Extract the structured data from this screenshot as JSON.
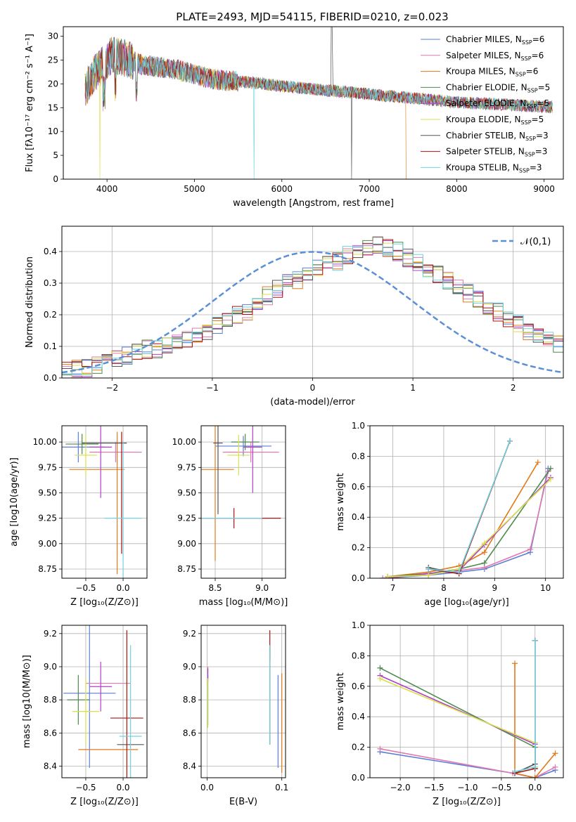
{
  "figure_title": "PLATE=2493, MJD=54115, FIBERID=0210, z=0.023",
  "colors": {
    "Chabrier MILES": "#5b7fd6",
    "Salpeter MILES": "#e07ab0",
    "Kroupa MILES": "#e07a1a",
    "Chabrier ELODIE": "#4f8a4f",
    "Salpeter ELODIE": "#b040c8",
    "Kroupa ELODIE": "#d8e04a",
    "Chabrier STELIB": "#555555",
    "Salpeter STELIB": "#b01010",
    "Kroupa STELIB": "#6fd3e0",
    "normal_curve": "#5b8fd6"
  },
  "chart_data": [
    {
      "type": "line",
      "title": "PLATE=2493, MJD=54115, FIBERID=0210, z=0.023",
      "xlabel": "wavelength [Angstrom, rest frame]",
      "ylabel": "Flux [f_λ 10^-17 erg cm^-2 s^-1 A^-1]",
      "xlim": [
        3500,
        9220
      ],
      "ylim": [
        0,
        32
      ],
      "xticks": [
        4000,
        5000,
        6000,
        7000,
        8000,
        9000
      ],
      "yticks": [
        0,
        5,
        10,
        15,
        20,
        25,
        30
      ],
      "legend_position": "top-right",
      "series": [
        {
          "name": "Chabrier MILES, N_SSP=6"
        },
        {
          "name": "Salpeter MILES, N_SSP=6"
        },
        {
          "name": "Kroupa MILES, N_SSP=6"
        },
        {
          "name": "Chabrier ELODIE, N_SSP=5"
        },
        {
          "name": "Salpeter ELODIE, N_SSP=5"
        },
        {
          "name": "Kroupa ELODIE, N_SSP=5"
        },
        {
          "name": "Chabrier STELIB, N_SSP=3"
        },
        {
          "name": "Salpeter STELIB, N_SSP=3"
        },
        {
          "name": "Kroupa STELIB, N_SSP=3"
        }
      ],
      "continuum": [
        [
          3750,
          19
        ],
        [
          3850,
          22
        ],
        [
          3950,
          24
        ],
        [
          4050,
          26
        ],
        [
          4200,
          25.5
        ],
        [
          4400,
          24
        ],
        [
          4600,
          23.5
        ],
        [
          4800,
          23
        ],
        [
          5000,
          22
        ],
        [
          5200,
          21
        ],
        [
          5500,
          20.5
        ],
        [
          5800,
          20
        ],
        [
          6000,
          19.5
        ],
        [
          6300,
          19
        ],
        [
          6600,
          18.5
        ],
        [
          6900,
          18
        ],
        [
          7200,
          17.5
        ],
        [
          7500,
          17
        ],
        [
          7800,
          16.5
        ],
        [
          8100,
          16
        ],
        [
          8400,
          15.8
        ],
        [
          8700,
          15.5
        ],
        [
          9000,
          15.2
        ],
        [
          9100,
          15.1
        ]
      ]
    },
    {
      "type": "bar",
      "xlabel": "(data-model)/error",
      "ylabel": "Normed distribution",
      "xlim": [
        -2.5,
        2.5
      ],
      "ylim": [
        0,
        0.48
      ],
      "xticks": [
        -2,
        -1,
        0,
        1,
        2
      ],
      "yticks": [
        0.0,
        0.1,
        0.2,
        0.3,
        0.4
      ],
      "legend_position": "top-right",
      "legend": "𝒩(0,1)",
      "bin_width": 0.1,
      "bins_from": -2.5,
      "histogram": [
        0.02,
        0.03,
        0.03,
        0.04,
        0.05,
        0.06,
        0.07,
        0.08,
        0.09,
        0.09,
        0.1,
        0.11,
        0.12,
        0.13,
        0.15,
        0.17,
        0.18,
        0.2,
        0.21,
        0.24,
        0.26,
        0.28,
        0.3,
        0.31,
        0.33,
        0.35,
        0.36,
        0.37,
        0.39,
        0.4,
        0.41,
        0.42,
        0.41,
        0.4,
        0.38,
        0.37,
        0.35,
        0.33,
        0.31,
        0.29,
        0.27,
        0.25,
        0.23,
        0.21,
        0.19,
        0.17,
        0.15,
        0.14,
        0.12,
        0.11
      ],
      "normal_curve": {
        "mean": 0,
        "sigma": 1
      }
    },
    {
      "type": "scatter",
      "xlabel": "Z [log10(Z/Z⊙)]",
      "ylabel": "age [log10(age/yr)]",
      "xlim": [
        -0.82,
        0.32
      ],
      "ylim": [
        8.66,
        10.16
      ],
      "xticks": [
        -0.5,
        0.0
      ],
      "yticks": [
        8.75,
        9.0,
        9.25,
        9.5,
        9.75,
        10.0
      ],
      "points": [
        {
          "series": "Chabrier MILES",
          "x": -0.6,
          "y": 9.95,
          "xerr": 0.35,
          "yerr": 0.15
        },
        {
          "series": "Salpeter MILES",
          "x": -0.1,
          "y": 9.9,
          "xerr": 0.35,
          "yerr": 0.1
        },
        {
          "series": "Kroupa MILES",
          "x": -0.35,
          "y": 9.73,
          "xerr": 0.37,
          "yerr": 0.0
        },
        {
          "series": "Kroupa MILES v",
          "x": -0.08,
          "y": 9.4,
          "xerr": 0.0,
          "yerr": 0.7
        },
        {
          "series": "Chabrier ELODIE",
          "x": -0.55,
          "y": 9.98,
          "xerr": 0.22,
          "yerr": 0.1
        },
        {
          "series": "Salpeter ELODIE",
          "x": -0.3,
          "y": 9.95,
          "xerr": 0.15,
          "yerr": 0.5
        },
        {
          "series": "Kroupa ELODIE",
          "x": -0.5,
          "y": 9.87,
          "xerr": 0.15,
          "yerr": 0.2
        },
        {
          "series": "Chabrier STELIB",
          "x": -0.25,
          "y": 9.99,
          "xerr": 0.3,
          "yerr": 0.0
        },
        {
          "series": "Salpeter STELIB",
          "x": -0.02,
          "y": 9.5,
          "xerr": 0.0,
          "yerr": 0.6
        },
        {
          "series": "Kroupa STELIB",
          "x": 0.0,
          "y": 9.25,
          "xerr": 0.25,
          "yerr": 0.75
        }
      ]
    },
    {
      "type": "scatter",
      "xlabel": "mass [log10(M/M⊙)]",
      "ylabel": "",
      "xlim": [
        8.35,
        9.25
      ],
      "ylim": [
        8.66,
        10.16
      ],
      "xticks": [
        8.5,
        9.0
      ],
      "yticks": [
        8.75,
        9.0,
        9.25,
        9.5,
        9.75,
        10.0
      ],
      "points": [
        {
          "series": "Chabrier MILES",
          "x": 8.8,
          "y": 9.96,
          "xerr": 0.3,
          "yerr": 0.1
        },
        {
          "series": "Salpeter MILES",
          "x": 8.88,
          "y": 9.9,
          "xerr": 0.3,
          "yerr": 0.1
        },
        {
          "series": "Kroupa MILES",
          "x": 8.5,
          "y": 9.73,
          "xerr": 0.2,
          "yerr": 0.9
        },
        {
          "series": "Chabrier ELODIE",
          "x": 8.82,
          "y": 10.0,
          "xerr": 0.15,
          "yerr": 0.08
        },
        {
          "series": "Salpeter ELODIE",
          "x": 8.9,
          "y": 9.95,
          "xerr": 0.1,
          "yerr": 0.45
        },
        {
          "series": "Kroupa ELODIE",
          "x": 8.75,
          "y": 9.87,
          "xerr": 0.12,
          "yerr": 0.2
        },
        {
          "series": "Chabrier STELIB",
          "x": 8.53,
          "y": 9.99,
          "xerr": 0.05,
          "yerr": 0.7
        },
        {
          "series": "Salpeter STELIB",
          "x": 8.7,
          "y": 9.25,
          "xerr": 0.5,
          "yerr": 0.1
        },
        {
          "series": "Kroupa STELIB",
          "x": 8.6,
          "y": 9.25,
          "xerr": 0.4,
          "yerr": 0.0
        }
      ]
    },
    {
      "type": "line",
      "xlabel": "age [log10(age/yr)]",
      "ylabel": "mass weight",
      "xlim": [
        6.55,
        10.35
      ],
      "ylim": [
        0,
        1.0
      ],
      "xticks": [
        7,
        8,
        9,
        10
      ],
      "yticks": [
        0.0,
        0.2,
        0.4,
        0.6,
        0.8,
        1.0
      ],
      "series": [
        {
          "key": "Chabrier MILES",
          "x": [
            6.8,
            7.7,
            8.3,
            8.8,
            9.7,
            10.05
          ],
          "y": [
            0.0,
            0.02,
            0.04,
            0.06,
            0.17,
            0.72
          ]
        },
        {
          "key": "Salpeter MILES",
          "x": [
            6.8,
            7.7,
            8.3,
            8.8,
            9.7,
            10.05
          ],
          "y": [
            0.0,
            0.03,
            0.05,
            0.07,
            0.19,
            0.7
          ]
        },
        {
          "key": "Kroupa MILES",
          "x": [
            6.9,
            7.7,
            8.3,
            8.8,
            9.85
          ],
          "y": [
            0.01,
            0.04,
            0.08,
            0.17,
            0.76
          ]
        },
        {
          "key": "Chabrier ELODIE",
          "x": [
            6.9,
            7.7,
            8.3,
            8.8,
            10.1
          ],
          "y": [
            0.01,
            0.03,
            0.06,
            0.1,
            0.72
          ]
        },
        {
          "key": "Salpeter ELODIE",
          "x": [
            6.9,
            7.7,
            8.3,
            8.8,
            10.1
          ],
          "y": [
            0.0,
            0.03,
            0.05,
            0.22,
            0.66
          ]
        },
        {
          "key": "Kroupa ELODIE",
          "x": [
            6.9,
            7.7,
            8.3,
            8.8,
            10.1
          ],
          "y": [
            0.01,
            0.02,
            0.06,
            0.23,
            0.65
          ]
        },
        {
          "key": "Chabrier STELIB",
          "x": [
            7.7,
            8.3,
            9.3
          ],
          "y": [
            0.07,
            0.03,
            0.9
          ]
        },
        {
          "key": "Salpeter STELIB",
          "x": [
            7.7,
            8.3,
            9.3
          ],
          "y": [
            0.06,
            0.03,
            0.9
          ]
        },
        {
          "key": "Kroupa STELIB",
          "x": [
            7.7,
            8.3,
            9.3
          ],
          "y": [
            0.06,
            0.04,
            0.9
          ]
        }
      ]
    },
    {
      "type": "scatter",
      "xlabel": "Z [log10(Z/Z⊙)]",
      "ylabel": "mass [log10(M/M⊙)]",
      "xlim": [
        -0.82,
        0.32
      ],
      "ylim": [
        8.33,
        9.25
      ],
      "xticks": [
        -0.5,
        0.0
      ],
      "yticks": [
        8.4,
        8.6,
        8.8,
        9.0,
        9.2
      ],
      "points": [
        {
          "series": "Chabrier MILES",
          "x": -0.45,
          "y": 8.84,
          "xerr": 0.35,
          "yerr": 0.45
        },
        {
          "series": "Salpeter MILES",
          "x": -0.2,
          "y": 8.9,
          "xerr": 0.3,
          "yerr": 0.0
        },
        {
          "series": "Kroupa MILES",
          "x": -0.2,
          "y": 8.5,
          "xerr": 0.4,
          "yerr": 0.0
        },
        {
          "series": "Chabrier ELODIE",
          "x": -0.6,
          "y": 8.8,
          "xerr": 0.15,
          "yerr": 0.15
        },
        {
          "series": "Salpeter ELODIE",
          "x": -0.3,
          "y": 8.88,
          "xerr": 0.15,
          "yerr": 0.15
        },
        {
          "series": "Kroupa ELODIE",
          "x": -0.5,
          "y": 8.73,
          "xerr": 0.18,
          "yerr": 0.2
        },
        {
          "series": "Chabrier STELIB",
          "x": 0.1,
          "y": 8.53,
          "xerr": 0.18,
          "yerr": 0.0
        },
        {
          "series": "Salpeter STELIB",
          "x": 0.05,
          "y": 8.69,
          "xerr": 0.22,
          "yerr": 0.53
        },
        {
          "series": "Kroupa STELIB",
          "x": 0.1,
          "y": 8.58,
          "xerr": 0.15,
          "yerr": 0.55
        }
      ]
    },
    {
      "type": "scatter",
      "xlabel": "E(B-V)",
      "ylabel": "",
      "xlim": [
        -0.008,
        0.105
      ],
      "ylim": [
        8.33,
        9.25
      ],
      "xticks": [
        0.0,
        0.1
      ],
      "yticks": [
        8.4,
        8.6,
        8.8,
        9.0,
        9.2
      ],
      "points": [
        {
          "series": "Chabrier MILES",
          "x": 0.095,
          "y": 8.67,
          "xerr": 0.0,
          "yerr": 0.28
        },
        {
          "series": "Salpeter MILES",
          "x": 0.001,
          "y": 8.98,
          "xerr": 0.0,
          "yerr": 0.02
        },
        {
          "series": "Kroupa MILES",
          "x": 0.1,
          "y": 8.66,
          "xerr": 0.0,
          "yerr": 0.3
        },
        {
          "series": "Chabrier ELODIE",
          "x": 0.001,
          "y": 8.8,
          "xerr": 0.0,
          "yerr": 0.15
        },
        {
          "series": "Salpeter ELODIE",
          "x": 0.001,
          "y": 8.95,
          "xerr": 0.0,
          "yerr": 0.04
        },
        {
          "series": "Kroupa ELODIE",
          "x": 0.001,
          "y": 8.78,
          "xerr": 0.0,
          "yerr": 0.15
        },
        {
          "series": "Chabrier STELIB",
          "x": 0.084,
          "y": 8.83,
          "xerr": 0.0,
          "yerr": 0.3
        },
        {
          "series": "Salpeter STELIB",
          "x": 0.084,
          "y": 9.13,
          "xerr": 0.0,
          "yerr": 0.09
        },
        {
          "series": "Kroupa STELIB",
          "x": 0.084,
          "y": 8.83,
          "xerr": 0.0,
          "yerr": 0.3
        }
      ]
    },
    {
      "type": "line",
      "xlabel": "Z [log10(Z/Z⊙)]",
      "ylabel": "mass weight",
      "xlim": [
        -2.45,
        0.42
      ],
      "ylim": [
        0,
        1.0
      ],
      "xticks": [
        -2.0,
        -1.5,
        -1.0,
        -0.5,
        0.0
      ],
      "yticks": [
        0.0,
        0.2,
        0.4,
        0.6,
        0.8,
        1.0
      ],
      "series": [
        {
          "key": "Chabrier MILES",
          "x": [
            -2.3,
            -0.33,
            0.0,
            0.3
          ],
          "y": [
            0.17,
            0.03,
            0.0,
            0.05
          ]
        },
        {
          "key": "Salpeter MILES",
          "x": [
            -2.3,
            -0.33,
            0.0,
            0.3
          ],
          "y": [
            0.19,
            0.03,
            0.0,
            0.07
          ]
        },
        {
          "key": "Kroupa MILES",
          "x": [
            -0.3,
            -0.3,
            0.0,
            0.3
          ],
          "y": [
            0.75,
            0.03,
            0.0,
            0.16
          ]
        },
        {
          "key": "Chabrier ELODIE",
          "x": [
            -2.3,
            0.0,
            0.0
          ],
          "y": [
            0.72,
            0.2,
            0.06
          ]
        },
        {
          "key": "Salpeter ELODIE",
          "x": [
            -2.3,
            0.0,
            0.0
          ],
          "y": [
            0.67,
            0.22,
            0.06
          ]
        },
        {
          "key": "Kroupa ELODIE",
          "x": [
            -2.3,
            0.0,
            0.0
          ],
          "y": [
            0.65,
            0.23,
            0.06
          ]
        },
        {
          "key": "Chabrier STELIB",
          "x": [
            -0.3,
            0.0,
            0.0
          ],
          "y": [
            0.03,
            0.09,
            0.9
          ]
        },
        {
          "key": "Salpeter STELIB",
          "x": [
            -0.3,
            0.0,
            0.0
          ],
          "y": [
            0.03,
            0.06,
            0.9
          ]
        },
        {
          "key": "Kroupa STELIB",
          "x": [
            -0.3,
            0.0,
            0.0
          ],
          "y": [
            0.04,
            0.07,
            0.9
          ]
        }
      ]
    }
  ]
}
